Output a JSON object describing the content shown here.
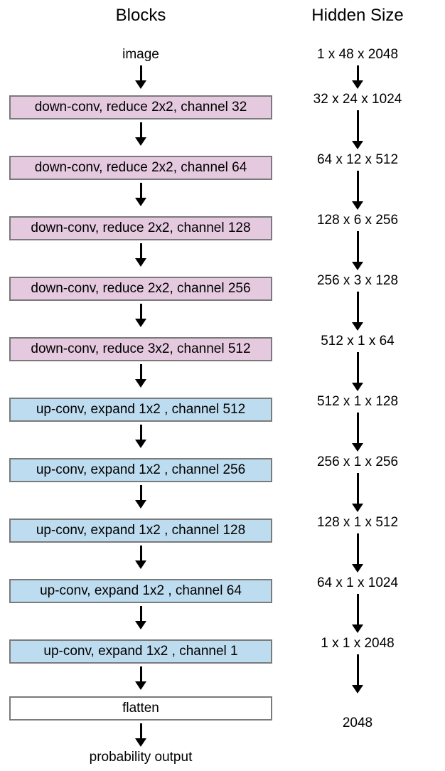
{
  "headers": {
    "blocks": "Blocks",
    "hidden": "Hidden Size"
  },
  "input": {
    "label": "image",
    "size": "1 x 48 x 2048"
  },
  "output": {
    "label": "probability  output",
    "size": "2048"
  },
  "colors": {
    "down": "#e4c9df",
    "up": "#bedcef",
    "plain": "#ffffff",
    "border": "#7a7a7a"
  },
  "layers": [
    {
      "kind": "down",
      "text": "down-conv, reduce 2x2, channel 32",
      "size": "32 x 24 x 1024"
    },
    {
      "kind": "down",
      "text": "down-conv, reduce 2x2, channel 64",
      "size": "64 x 12 x 512"
    },
    {
      "kind": "down",
      "text": "down-conv, reduce 2x2, channel 128",
      "size": "128 x 6 x 256"
    },
    {
      "kind": "down",
      "text": "down-conv, reduce 2x2, channel 256",
      "size": "256 x 3 x 128"
    },
    {
      "kind": "down",
      "text": "down-conv, reduce 3x2, channel 512",
      "size": "512 x 1 x 64"
    },
    {
      "kind": "up",
      "text": "up-conv, expand 1x2 ,   channel 512",
      "size": "512 x 1 x 128"
    },
    {
      "kind": "up",
      "text": "up-conv, expand 1x2 ,   channel 256",
      "size": "256 x 1 x 256"
    },
    {
      "kind": "up",
      "text": "up-conv, expand 1x2 ,   channel 128",
      "size": "128 x 1 x 512"
    },
    {
      "kind": "up",
      "text": "up-conv, expand 1x2 ,   channel 64",
      "size": "64 x 1 x 1024"
    },
    {
      "kind": "up",
      "text": "up-conv, expand 1x2 ,   channel 1",
      "size": "1 x 1 x 2048"
    },
    {
      "kind": "plain",
      "text": "flatten",
      "size": "2048"
    }
  ]
}
